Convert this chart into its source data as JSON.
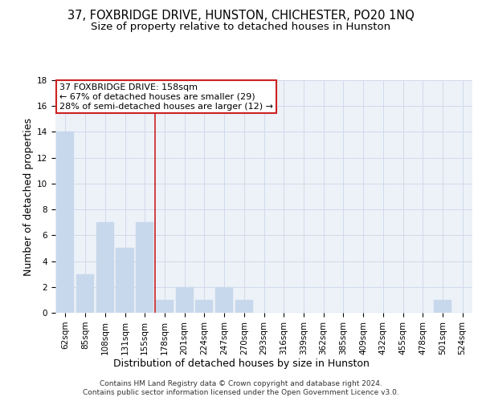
{
  "title": "37, FOXBRIDGE DRIVE, HUNSTON, CHICHESTER, PO20 1NQ",
  "subtitle": "Size of property relative to detached houses in Hunston",
  "xlabel": "Distribution of detached houses by size in Hunston",
  "ylabel": "Number of detached properties",
  "footer_line1": "Contains HM Land Registry data © Crown copyright and database right 2024.",
  "footer_line2": "Contains public sector information licensed under the Open Government Licence v3.0.",
  "categories": [
    "62sqm",
    "85sqm",
    "108sqm",
    "131sqm",
    "155sqm",
    "178sqm",
    "201sqm",
    "224sqm",
    "247sqm",
    "270sqm",
    "293sqm",
    "316sqm",
    "339sqm",
    "362sqm",
    "385sqm",
    "409sqm",
    "432sqm",
    "455sqm",
    "478sqm",
    "501sqm",
    "524sqm"
  ],
  "values": [
    14,
    3,
    7,
    5,
    7,
    1,
    2,
    1,
    2,
    1,
    0,
    0,
    0,
    0,
    0,
    0,
    0,
    0,
    0,
    1,
    0
  ],
  "bar_color": "#c8d8ec",
  "bar_edge_color": "#c8d8ec",
  "vline_color": "#cc2222",
  "vline_x_index": 4.5,
  "annotation_text": "37 FOXBRIDGE DRIVE: 158sqm\n← 67% of detached houses are smaller (29)\n28% of semi-detached houses are larger (12) →",
  "annotation_box_edge_color": "#cc2222",
  "ylim": [
    0,
    18
  ],
  "yticks": [
    0,
    2,
    4,
    6,
    8,
    10,
    12,
    14,
    16,
    18
  ],
  "grid_color": "#d0daea",
  "bg_color": "#edf2f8",
  "title_fontsize": 10.5,
  "subtitle_fontsize": 9.5,
  "axis_label_fontsize": 9,
  "tick_fontsize": 7.5,
  "annotation_fontsize": 8,
  "footer_fontsize": 6.5
}
